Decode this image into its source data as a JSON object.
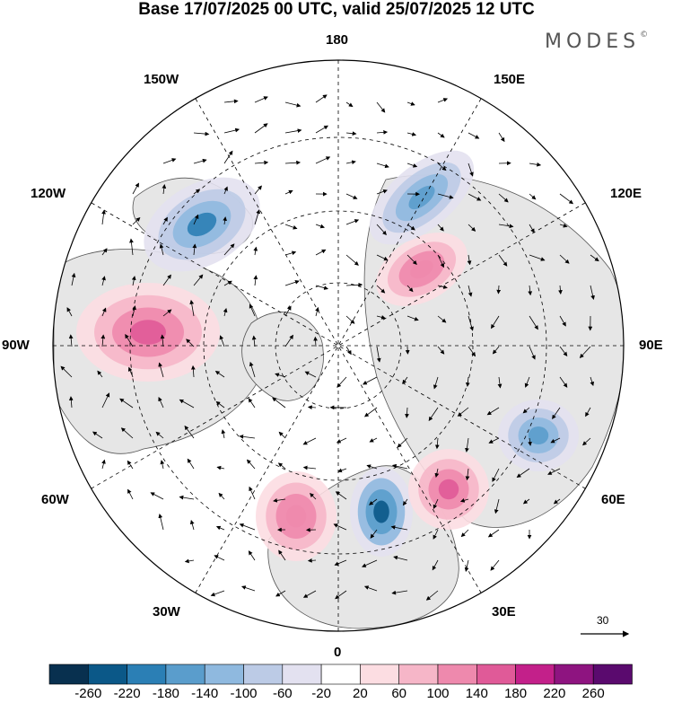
{
  "header": {
    "title": "Base 17/07/2025 00 UTC, valid 25/07/2025 12 UTC",
    "brand": "MODES",
    "brand_mark": "©"
  },
  "map": {
    "projection": "north-polar-stereographic",
    "longitude_labels": {
      "top": "180",
      "bottom": "0",
      "left": "90W",
      "right": "90E",
      "upper_left_1": "150W",
      "upper_left_2": "120W",
      "upper_right_1": "150E",
      "upper_right_2": "120E",
      "lower_left_1": "60W",
      "lower_left_2": "30W",
      "lower_right_1": "60E",
      "lower_right_2": "30E"
    },
    "grid": true,
    "wind_vectors": true,
    "reference_vector": {
      "value": "30"
    },
    "land_color": "#e6e6e6",
    "anomalies": [
      {
        "name": "pacific-low",
        "sign": "negative",
        "peak": -180
      },
      {
        "name": "north-america-high",
        "sign": "positive",
        "peak": 180
      },
      {
        "name": "siberia-high",
        "sign": "positive",
        "peak": 140
      },
      {
        "name": "bering-low",
        "sign": "negative",
        "peak": -140
      },
      {
        "name": "europe-low",
        "sign": "negative",
        "peak": -220
      },
      {
        "name": "russia-high",
        "sign": "positive",
        "peak": 180
      },
      {
        "name": "central-asia-low",
        "sign": "negative",
        "peak": -140
      },
      {
        "name": "atlantic-high",
        "sign": "positive",
        "peak": 140
      }
    ]
  },
  "colorbar": {
    "colors": [
      "#08304f",
      "#0b5888",
      "#2b7fb5",
      "#5a9dcc",
      "#8fb9df",
      "#bccbe6",
      "#e3e1f0",
      "#ffffff",
      "#fcdde2",
      "#f6b6c8",
      "#ee89ad",
      "#e05a98",
      "#c3208a",
      "#8e1480",
      "#5a0a6e"
    ],
    "ticks": [
      "-260",
      "-220",
      "-180",
      "-140",
      "-100",
      "-60",
      "-20",
      "20",
      "60",
      "100",
      "140",
      "180",
      "220",
      "260"
    ]
  }
}
